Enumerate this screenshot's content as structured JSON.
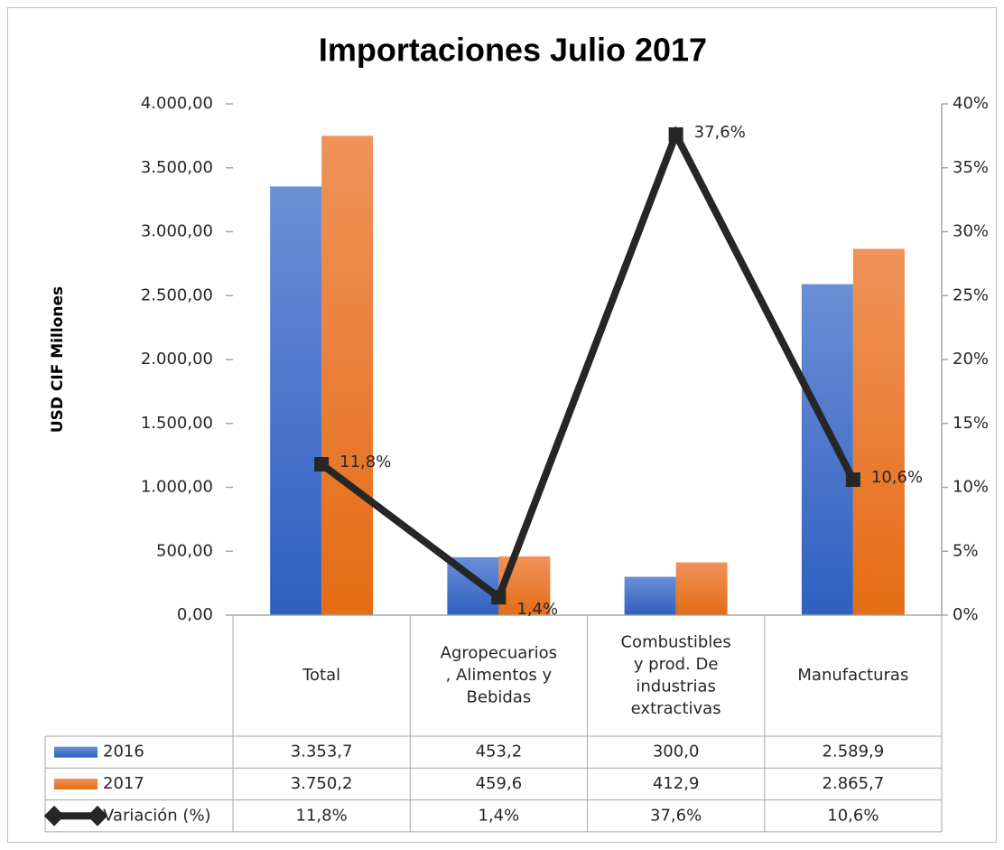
{
  "chart_data": {
    "type": "bar",
    "title": "Importaciones Julio 2017",
    "y_label": "USD CIF Millones",
    "categories": [
      "Total",
      "Agropecuarios\n, Alimentos y\nBebidas",
      "Combustibles\ny prod. De\nindustrias\nextractivas",
      "Manufacturas"
    ],
    "series": [
      {
        "name": "2016",
        "type": "bar",
        "color": "#4472c4",
        "values": [
          3353.7,
          453.2,
          300.0,
          2589.9
        ],
        "value_labels": [
          "3.353,7",
          "453,2",
          "300,0",
          "2.589,9"
        ]
      },
      {
        "name": "2017",
        "type": "bar",
        "color": "#ed7d31",
        "values": [
          3750.2,
          459.6,
          412.9,
          2865.7
        ],
        "value_labels": [
          "3.750,2",
          "459,6",
          "412,9",
          "2.865,7"
        ]
      },
      {
        "name": "Variación (%)",
        "type": "line",
        "axis": "y2",
        "color": "#262626",
        "values": [
          11.8,
          1.4,
          37.6,
          10.6
        ],
        "value_labels": [
          "11,8%",
          "1,4%",
          "37,6%",
          "10,6%"
        ]
      }
    ],
    "ylim": [
      0,
      4000
    ],
    "yticks": [
      {
        "value": 0,
        "label": "0,00"
      },
      {
        "value": 500,
        "label": "500,00"
      },
      {
        "value": 1000,
        "label": "1.000,00"
      },
      {
        "value": 1500,
        "label": "1.500,00"
      },
      {
        "value": 2000,
        "label": "2.000,00"
      },
      {
        "value": 2500,
        "label": "2.500,00"
      },
      {
        "value": 3000,
        "label": "3.000,00"
      },
      {
        "value": 3500,
        "label": "3.500,00"
      },
      {
        "value": 4000,
        "label": "4.000,00"
      }
    ],
    "y2lim": [
      0,
      40
    ],
    "y2ticks": [
      {
        "value": 0,
        "label": "0%"
      },
      {
        "value": 5,
        "label": "5%"
      },
      {
        "value": 10,
        "label": "10%"
      },
      {
        "value": 15,
        "label": "15%"
      },
      {
        "value": 20,
        "label": "20%"
      },
      {
        "value": 25,
        "label": "25%"
      },
      {
        "value": 30,
        "label": "30%"
      },
      {
        "value": 35,
        "label": "35%"
      },
      {
        "value": 40,
        "label": "40%"
      }
    ],
    "data_table": true
  }
}
